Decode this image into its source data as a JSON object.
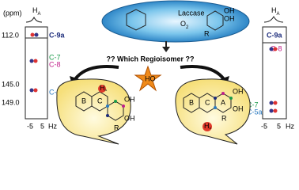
{
  "left_spectrum": {
    "axis_title": "(ppm)",
    "header": "H",
    "header_sub": "A",
    "yticks": [
      "112.0",
      "145.0",
      "149.0"
    ],
    "labels": [
      "C-9a",
      "C-7",
      "C-8",
      "C-5a"
    ],
    "xticks": [
      "-5",
      "5"
    ],
    "x_unit": "Hz"
  },
  "right_spectrum": {
    "header": "H",
    "header_sub": "A",
    "labels": [
      "C-9a",
      "C-8",
      "C-7",
      "C-5a"
    ],
    "xticks": [
      "-5",
      "5"
    ],
    "x_unit": "Hz"
  },
  "reaction": {
    "enzyme": "Laccase",
    "oxidant": "O",
    "oxidant_sub": "2",
    "question": "?? Which Regioisomer ??",
    "radical": "HO",
    "substituent": "R",
    "hydroxyl": "OH"
  },
  "left_molecule": {
    "rings": [
      "B",
      "C"
    ],
    "substituent": "R",
    "hydroxyls": [
      "OH",
      "OH"
    ],
    "proton": "H",
    "proton_sub": "A"
  },
  "right_molecule": {
    "rings": [
      "B",
      "C",
      "A"
    ],
    "substituent": "R",
    "hydroxyls": [
      "OH",
      "OH"
    ],
    "proton": "H",
    "proton_sub": "A"
  }
}
